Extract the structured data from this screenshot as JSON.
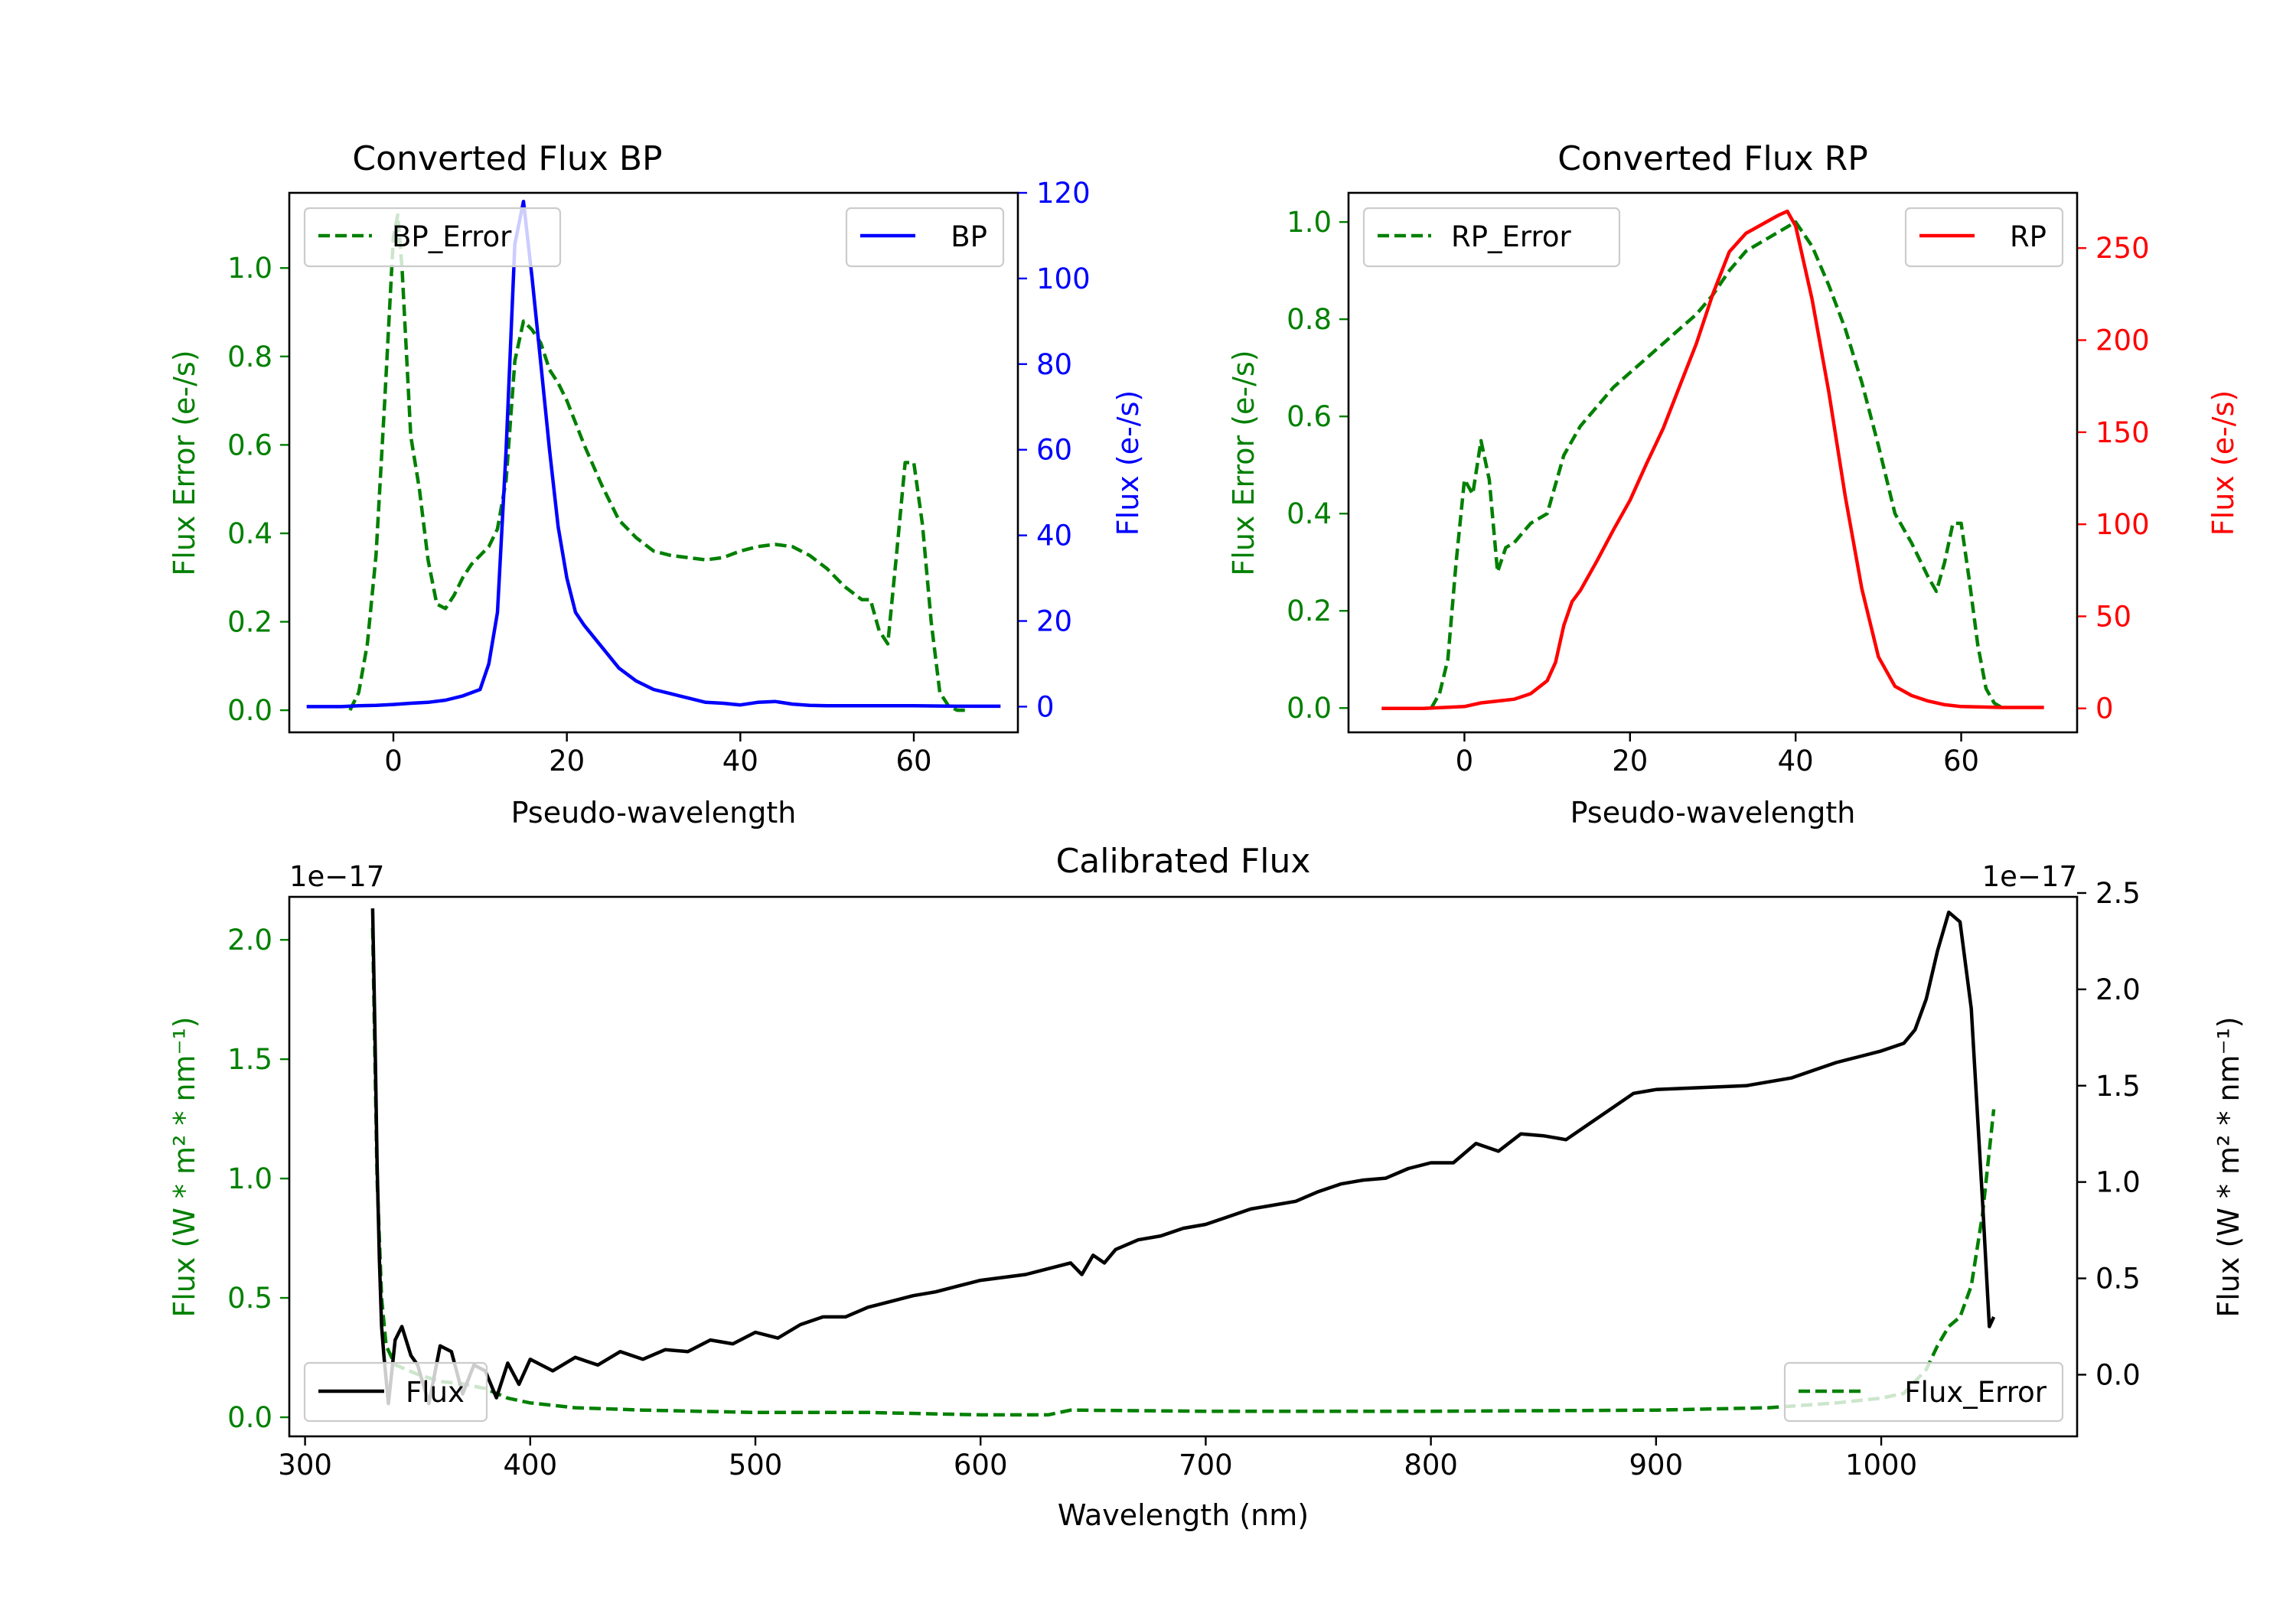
{
  "colors": {
    "bp": "#0000ff",
    "rp": "#ff0000",
    "error": "#008000",
    "flux": "#000000",
    "axis": "#000000"
  },
  "chart_data": [
    {
      "id": "bp",
      "type": "line",
      "title": "Converted Flux BP",
      "xlabel": "Pseudo-wavelength",
      "ylabel_left": "Flux Error (e-/s)",
      "ylabel_right": "Flux (e-/s)",
      "xlim": [
        -12,
        72
      ],
      "ylim_left": [
        -0.05,
        1.17
      ],
      "ylim_right": [
        -6,
        120
      ],
      "xticks": [
        "0",
        "20",
        "40",
        "60"
      ],
      "yticks_left": [
        "0.0",
        "0.2",
        "0.4",
        "0.6",
        "0.8",
        "1.0"
      ],
      "yticks_right": [
        "0",
        "20",
        "40",
        "60",
        "80",
        "100",
        "120"
      ],
      "series": [
        {
          "name": "BP_Error",
          "axis": "left",
          "style": "dashed",
          "color_key": "error",
          "x": [
            -5,
            -4,
            -3,
            -2,
            -1,
            0,
            0.5,
            1,
            2,
            3,
            4,
            5,
            6,
            7,
            8,
            9,
            10,
            11,
            12,
            13,
            14,
            15,
            16,
            17,
            18,
            19,
            20,
            22,
            24,
            26,
            28,
            30,
            32,
            34,
            36,
            38,
            40,
            42,
            44,
            46,
            48,
            50,
            52,
            54,
            55,
            56,
            57,
            58,
            59,
            60,
            61,
            62,
            63,
            64,
            65,
            66
          ],
          "values": [
            0.0,
            0.04,
            0.15,
            0.35,
            0.7,
            1.07,
            1.12,
            1.0,
            0.62,
            0.5,
            0.34,
            0.24,
            0.23,
            0.26,
            0.3,
            0.33,
            0.35,
            0.37,
            0.41,
            0.52,
            0.79,
            0.88,
            0.86,
            0.83,
            0.77,
            0.74,
            0.7,
            0.6,
            0.51,
            0.43,
            0.39,
            0.36,
            0.35,
            0.345,
            0.34,
            0.345,
            0.36,
            0.37,
            0.375,
            0.37,
            0.35,
            0.32,
            0.28,
            0.25,
            0.25,
            0.18,
            0.15,
            0.35,
            0.56,
            0.56,
            0.42,
            0.2,
            0.04,
            0.01,
            0.0,
            0.0
          ]
        },
        {
          "name": "BP",
          "axis": "right",
          "style": "solid",
          "color_key": "bp",
          "x": [
            -10,
            -8,
            -6,
            -4,
            -2,
            0,
            2,
            4,
            6,
            8,
            10,
            11,
            12,
            13,
            14,
            15,
            16,
            17,
            18,
            19,
            20,
            21,
            22,
            24,
            26,
            28,
            30,
            32,
            34,
            36,
            38,
            40,
            42,
            44,
            46,
            48,
            50,
            55,
            60,
            65,
            70
          ],
          "values": [
            0,
            0,
            0,
            0.2,
            0.3,
            0.5,
            0.8,
            1,
            1.5,
            2.5,
            4,
            10,
            22,
            60,
            108,
            118,
            100,
            80,
            60,
            42,
            30,
            22,
            19,
            14,
            9,
            6,
            4,
            3,
            2,
            1,
            0.8,
            0.4,
            1,
            1.2,
            0.6,
            0.3,
            0.2,
            0.2,
            0.2,
            0.1,
            0.1
          ]
        }
      ],
      "legend": [
        {
          "label": "BP_Error",
          "position": "upper left"
        },
        {
          "label": "BP",
          "position": "upper right"
        }
      ]
    },
    {
      "id": "rp",
      "type": "line",
      "title": "Converted Flux RP",
      "xlabel": "Pseudo-wavelength",
      "ylabel_left": "Flux Error (e-/s)",
      "ylabel_right": "Flux (e-/s)",
      "xlim": [
        -14,
        74
      ],
      "ylim_left": [
        -0.05,
        1.06
      ],
      "ylim_right": [
        -13,
        280
      ],
      "xticks": [
        "0",
        "20",
        "40",
        "60"
      ],
      "yticks_left": [
        "0.0",
        "0.2",
        "0.4",
        "0.6",
        "0.8",
        "1.0"
      ],
      "yticks_right": [
        "0",
        "50",
        "100",
        "150",
        "200",
        "250"
      ],
      "series": [
        {
          "name": "RP_Error",
          "axis": "left",
          "style": "dashed",
          "color_key": "error",
          "x": [
            -4,
            -3,
            -2,
            -1,
            0,
            1,
            2,
            3,
            4,
            5,
            6,
            8,
            10,
            12,
            14,
            16,
            18,
            20,
            22,
            24,
            26,
            28,
            30,
            32,
            34,
            36,
            38,
            40,
            42,
            44,
            46,
            48,
            50,
            52,
            54,
            56,
            57,
            58,
            59,
            60,
            61,
            62,
            63,
            64,
            65
          ],
          "values": [
            0.0,
            0.03,
            0.1,
            0.3,
            0.47,
            0.44,
            0.55,
            0.47,
            0.28,
            0.33,
            0.34,
            0.38,
            0.4,
            0.52,
            0.58,
            0.62,
            0.66,
            0.69,
            0.72,
            0.75,
            0.78,
            0.81,
            0.85,
            0.9,
            0.94,
            0.96,
            0.98,
            1.0,
            0.95,
            0.87,
            0.78,
            0.67,
            0.54,
            0.4,
            0.34,
            0.27,
            0.24,
            0.3,
            0.38,
            0.38,
            0.26,
            0.13,
            0.04,
            0.01,
            0.0
          ]
        },
        {
          "name": "RP",
          "axis": "right",
          "style": "solid",
          "color_key": "rp",
          "x": [
            -10,
            -5,
            0,
            2,
            4,
            6,
            8,
            10,
            11,
            12,
            13,
            14,
            16,
            18,
            20,
            22,
            24,
            26,
            28,
            30,
            32,
            34,
            36,
            38,
            39,
            40,
            42,
            44,
            46,
            48,
            50,
            52,
            54,
            56,
            58,
            60,
            65,
            70
          ],
          "values": [
            0,
            0,
            1,
            3,
            4,
            5,
            8,
            15,
            25,
            45,
            58,
            64,
            80,
            97,
            113,
            133,
            152,
            175,
            198,
            225,
            248,
            258,
            263,
            268,
            270,
            262,
            222,
            172,
            115,
            65,
            28,
            12,
            7,
            4,
            2,
            1,
            0.5,
            0.5
          ]
        }
      ],
      "legend": [
        {
          "label": "RP_Error",
          "position": "upper left"
        },
        {
          "label": "RP",
          "position": "upper right"
        }
      ]
    },
    {
      "id": "cal",
      "type": "line",
      "title": "Calibrated Flux",
      "xlabel": "Wavelength (nm)",
      "ylabel_left": "Flux (W * m² * nm⁻¹)",
      "ylabel_right": "Flux (W * m² * nm⁻¹)",
      "offset_left": "1e−17",
      "offset_right": "1e−17",
      "xlim": [
        293,
        1087
      ],
      "ylim_left": [
        -0.08,
        2.18
      ],
      "ylim_right": [
        -0.32,
        2.48
      ],
      "xticks": [
        "300",
        "400",
        "500",
        "600",
        "700",
        "800",
        "900",
        "1000"
      ],
      "yticks_left": [
        "0.0",
        "0.5",
        "1.0",
        "1.5",
        "2.0"
      ],
      "yticks_right": [
        "0.0",
        "0.5",
        "1.0",
        "1.5",
        "2.0",
        "2.5"
      ],
      "series": [
        {
          "name": "Flux_Error",
          "axis": "left",
          "style": "dashed",
          "color_key": "error",
          "x": [
            330,
            332,
            334,
            336,
            340,
            350,
            360,
            370,
            380,
            390,
            400,
            420,
            450,
            500,
            550,
            600,
            630,
            640,
            700,
            800,
            900,
            950,
            980,
            1000,
            1010,
            1020,
            1025,
            1030,
            1035,
            1040,
            1045,
            1050
          ],
          "values": [
            2.05,
            1.0,
            0.5,
            0.3,
            0.22,
            0.18,
            0.15,
            0.14,
            0.12,
            0.08,
            0.06,
            0.04,
            0.03,
            0.02,
            0.02,
            0.01,
            0.01,
            0.03,
            0.025,
            0.025,
            0.03,
            0.04,
            0.06,
            0.08,
            0.1,
            0.2,
            0.3,
            0.38,
            0.42,
            0.55,
            0.85,
            1.29
          ]
        },
        {
          "name": "Flux",
          "axis": "right",
          "style": "solid",
          "color_key": "flux",
          "x": [
            330,
            331,
            332,
            333,
            334,
            335,
            337,
            340,
            343,
            347,
            350,
            355,
            360,
            365,
            370,
            375,
            380,
            385,
            390,
            395,
            400,
            410,
            420,
            430,
            440,
            450,
            460,
            470,
            480,
            490,
            500,
            510,
            520,
            530,
            540,
            550,
            560,
            570,
            580,
            590,
            600,
            620,
            630,
            640,
            645,
            650,
            655,
            660,
            670,
            680,
            690,
            700,
            710,
            720,
            740,
            750,
            760,
            770,
            780,
            790,
            800,
            810,
            820,
            830,
            840,
            850,
            860,
            870,
            880,
            890,
            900,
            920,
            940,
            960,
            980,
            990,
            1000,
            1010,
            1015,
            1020,
            1025,
            1030,
            1035,
            1040,
            1045,
            1048,
            1050
          ],
          "values": [
            2.42,
            1.8,
            1.1,
            0.6,
            0.25,
            0.1,
            -0.15,
            0.18,
            0.25,
            0.1,
            0.05,
            -0.15,
            0.15,
            0.12,
            -0.1,
            0.05,
            0.02,
            -0.12,
            0.06,
            -0.05,
            0.08,
            0.02,
            0.09,
            0.05,
            0.12,
            0.08,
            0.13,
            0.12,
            0.18,
            0.16,
            0.22,
            0.19,
            0.26,
            0.3,
            0.3,
            0.35,
            0.38,
            0.41,
            0.43,
            0.46,
            0.49,
            0.52,
            0.55,
            0.58,
            0.52,
            0.62,
            0.58,
            0.65,
            0.7,
            0.72,
            0.76,
            0.78,
            0.82,
            0.86,
            0.9,
            0.95,
            0.99,
            1.01,
            1.02,
            1.07,
            1.1,
            1.1,
            1.2,
            1.16,
            1.25,
            1.24,
            1.22,
            1.3,
            1.38,
            1.46,
            1.48,
            1.49,
            1.5,
            1.54,
            1.62,
            1.65,
            1.68,
            1.72,
            1.79,
            1.95,
            2.2,
            2.4,
            2.35,
            1.9,
            0.9,
            0.25,
            0.3
          ]
        }
      ],
      "legend": [
        {
          "label": "Flux",
          "position": "lower left"
        },
        {
          "label": "Flux_Error",
          "position": "lower right"
        }
      ]
    }
  ]
}
